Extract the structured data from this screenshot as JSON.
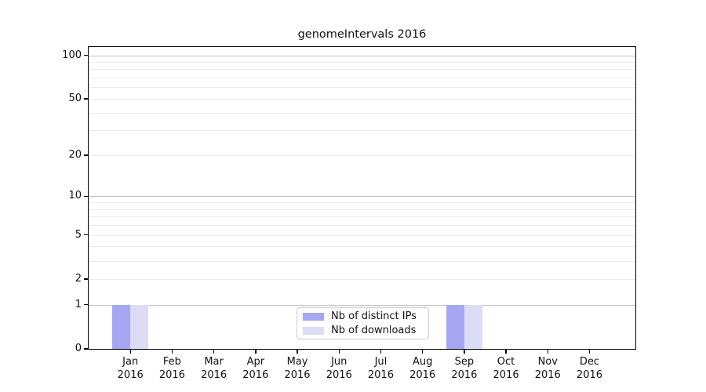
{
  "title": "genomeIntervals 2016",
  "colors": {
    "ips_bar": "#a6a6f2",
    "downloads_bar": "#dcdcf7",
    "grid_major": "#c3c3c3",
    "grid_minor": "#ebebeb",
    "axis": "#000000",
    "background": "#ffffff",
    "text": "#111111"
  },
  "chart_data": {
    "type": "bar",
    "title": "genomeIntervals 2016",
    "categories": [
      {
        "month": "Jan",
        "year": "2016"
      },
      {
        "month": "Feb",
        "year": "2016"
      },
      {
        "month": "Mar",
        "year": "2016"
      },
      {
        "month": "Apr",
        "year": "2016"
      },
      {
        "month": "May",
        "year": "2016"
      },
      {
        "month": "Jun",
        "year": "2016"
      },
      {
        "month": "Jul",
        "year": "2016"
      },
      {
        "month": "Aug",
        "year": "2016"
      },
      {
        "month": "Sep",
        "year": "2016"
      },
      {
        "month": "Oct",
        "year": "2016"
      },
      {
        "month": "Nov",
        "year": "2016"
      },
      {
        "month": "Dec",
        "year": "2016"
      }
    ],
    "series": [
      {
        "name": "Nb of distinct IPs",
        "color": "#a6a6f2",
        "values": [
          1,
          0,
          0,
          0,
          0,
          0,
          0,
          0,
          1,
          0,
          0,
          0
        ]
      },
      {
        "name": "Nb of downloads",
        "color": "#dcdcf7",
        "values": [
          1,
          0,
          0,
          0,
          0,
          0,
          0,
          0,
          1,
          0,
          0,
          0
        ]
      }
    ],
    "y_scale": "log1p",
    "y_ticks": [
      0,
      1,
      2,
      5,
      10,
      20,
      50,
      100
    ],
    "y_major_gridlines": [
      1,
      10,
      100
    ],
    "y_minor_gridlines": [
      2,
      3,
      4,
      5,
      6,
      7,
      8,
      9,
      20,
      30,
      40,
      50,
      60,
      70,
      80,
      90
    ],
    "ylim_top": 114,
    "grid": true,
    "legend": {
      "position": "lower center",
      "entries": [
        "Nb of distinct IPs",
        "Nb of downloads"
      ]
    },
    "xlabel": "",
    "ylabel": ""
  }
}
